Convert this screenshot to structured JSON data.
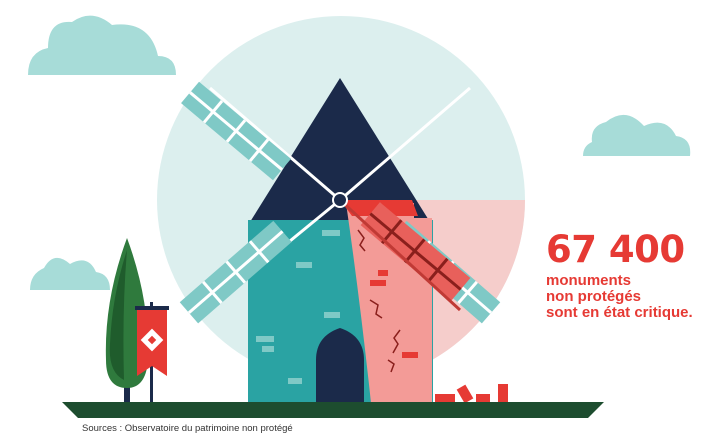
{
  "stat": {
    "number": "67 400",
    "line1": "monuments",
    "line2": "non protégés",
    "line3": "sont en état critique."
  },
  "source": "Sources : Observatoire du patrimoine non protégé",
  "colors": {
    "teal": "#2aa3a3",
    "navy": "#1b2a4a",
    "red": "#e63a34",
    "pink": "#f6a7a4",
    "circle": "#dcefee",
    "ground": "#1d4d2f",
    "tree": "#2f7a3d",
    "cloud": "#a7dcd8",
    "blade": "#7fc9c6"
  },
  "icons": [
    "cloud-icon",
    "windmill-icon",
    "tree-icon",
    "banner-flag-icon",
    "bricks-icon"
  ]
}
